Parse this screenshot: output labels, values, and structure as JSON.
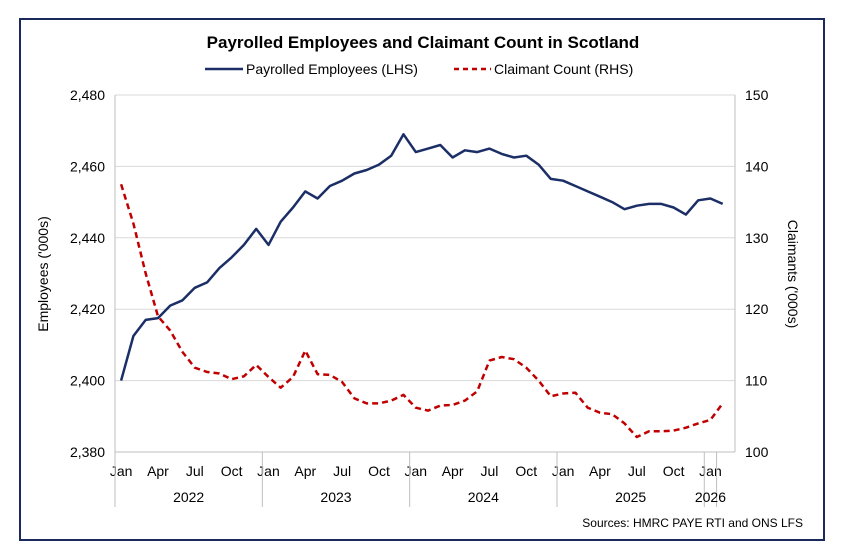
{
  "colors": {
    "border": "#1b2a5c",
    "employees": "#1b2f66",
    "claimants": "#c00000",
    "grid": "#d9d9d9",
    "axis": "#bfbfbf"
  },
  "source": "Sources: HMRC PAYE RTI and ONS LFS",
  "chart_data": {
    "type": "line",
    "title": "Payrolled Employees and Claimant Count in Scotland",
    "legend_position": "top",
    "grid": true,
    "ylabel_left": "Employees ('000s)",
    "ylabel_right": "Claimants ('000s)",
    "ylim_left": [
      2380,
      2480
    ],
    "ylim_right": [
      100,
      150
    ],
    "yticks_left": [
      "2,380",
      "2,400",
      "2,420",
      "2,440",
      "2,460",
      "2,480"
    ],
    "yticks_right": [
      "100",
      "110",
      "120",
      "130",
      "140",
      "150"
    ],
    "x_month_labels": [
      "Jan",
      "Apr",
      "Jul",
      "Oct",
      "Jan",
      "Apr",
      "Jul",
      "Oct",
      "Jan",
      "Apr",
      "Jul",
      "Oct",
      "Jan",
      "Apr",
      "Jul",
      "Oct",
      "Jan"
    ],
    "x_month_label_indices": [
      0,
      3,
      6,
      9,
      12,
      15,
      18,
      21,
      24,
      27,
      30,
      33,
      36,
      39,
      42,
      45,
      48
    ],
    "x_year_labels": [
      "2022",
      "2023",
      "2024",
      "2025",
      "2026"
    ],
    "x_year_groups": [
      [
        0,
        11
      ],
      [
        12,
        23
      ],
      [
        24,
        35
      ],
      [
        36,
        47
      ],
      [
        48,
        48
      ]
    ],
    "series": [
      {
        "name": "Payrolled Employees (LHS)",
        "axis": "left",
        "style": "solid",
        "values": [
          2400.0,
          2412.5,
          2417.0,
          2417.5,
          2421.0,
          2422.5,
          2426.0,
          2427.5,
          2431.5,
          2434.5,
          2438.0,
          2442.5,
          2438.0,
          2444.5,
          2448.5,
          2453.0,
          2451.0,
          2454.5,
          2456.0,
          2458.0,
          2459.0,
          2460.5,
          2463.0,
          2469.0,
          2464.0,
          2465.0,
          2466.0,
          2462.5,
          2464.5,
          2464.0,
          2465.0,
          2463.5,
          2462.5,
          2463.0,
          2460.5,
          2456.5,
          2456.0,
          2454.5,
          2453.0,
          2451.5,
          2450.0,
          2448.0,
          2449.0,
          2449.5,
          2449.5,
          2448.5,
          2446.5,
          2450.5,
          2451.0,
          2449.5
        ]
      },
      {
        "name": "Claimant Count (RHS)",
        "axis": "right",
        "style": "dashed",
        "values": [
          137.5,
          132.0,
          125.0,
          119.0,
          117.0,
          114.0,
          111.8,
          111.2,
          111.0,
          110.2,
          110.6,
          112.2,
          110.5,
          109.0,
          110.5,
          114.2,
          110.9,
          110.8,
          109.8,
          107.5,
          106.8,
          106.8,
          107.2,
          108.0,
          106.2,
          105.8,
          106.5,
          106.6,
          107.2,
          108.5,
          112.8,
          113.3,
          113.0,
          111.8,
          110.0,
          107.8,
          108.2,
          108.3,
          106.2,
          105.5,
          105.3,
          104.0,
          102.1,
          102.9,
          102.9,
          103.0,
          103.4,
          104.0,
          104.5,
          106.8
        ]
      }
    ]
  }
}
